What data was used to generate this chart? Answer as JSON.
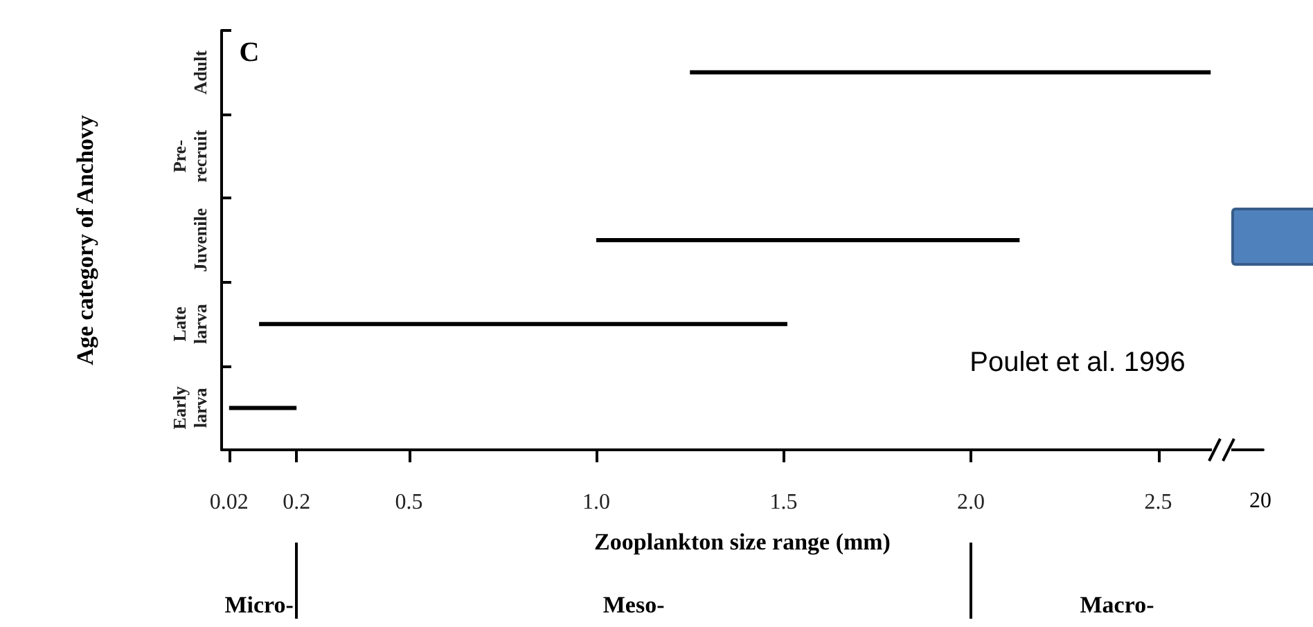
{
  "chart_data": {
    "type": "bar",
    "orientation": "horizontal",
    "xlabel": "Zooplankton size range (mm)",
    "ylabel": "Age category of Anchovy",
    "categories": [
      "Adult",
      "Pre-recruit",
      "Juvenile",
      "Late larva",
      "Early larva"
    ],
    "base": [
      1.25,
      null,
      1.0,
      0.1,
      0.02
    ],
    "values": [
      1.39,
      null,
      1.13,
      1.41,
      0.18
    ],
    "color": "#000000",
    "xlim": [
      0,
      2.78
    ],
    "xticks": [
      0.02,
      0.2,
      0.5,
      {
        "value": 1,
        "label": "1.0"
      },
      1.5,
      {
        "value": 2,
        "label": "2.0"
      },
      2.5
    ],
    "annotations": [
      "C",
      "Poulet et al. 1996",
      "Micro-",
      "Meso-",
      "Macro-",
      "20"
    ],
    "grid": false
  }
}
